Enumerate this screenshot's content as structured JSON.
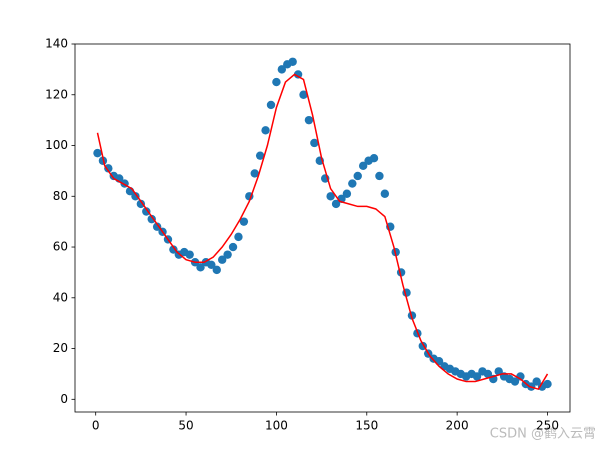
{
  "chart_data": {
    "type": "scatter",
    "xlim": [
      -11.45,
      262.45
    ],
    "ylim": [
      -5,
      140
    ],
    "xticks": [
      0,
      50,
      100,
      150,
      200,
      250
    ],
    "yticks": [
      0,
      20,
      40,
      60,
      80,
      100,
      120,
      140
    ],
    "annotation": "CSDN @鹤入云霄",
    "scatter": {
      "color": "#1f77b4",
      "x": [
        1,
        4,
        7,
        10,
        13,
        16,
        19,
        22,
        25,
        28,
        31,
        34,
        37,
        40,
        43,
        46,
        49,
        52,
        55,
        58,
        61,
        64,
        67,
        70,
        73,
        76,
        79,
        82,
        85,
        88,
        91,
        94,
        97,
        100,
        103,
        106,
        109,
        112,
        115,
        118,
        121,
        124,
        127,
        130,
        133,
        136,
        139,
        142,
        145,
        148,
        151,
        154,
        157,
        160,
        163,
        166,
        169,
        172,
        175,
        178,
        181,
        184,
        187,
        190,
        193,
        196,
        199,
        202,
        205,
        208,
        211,
        214,
        217,
        220,
        223,
        226,
        229,
        232,
        235,
        238,
        241,
        244,
        247,
        250
      ],
      "values": [
        97,
        94,
        91,
        88,
        87,
        85,
        82,
        80,
        77,
        74,
        71,
        68,
        66,
        63,
        59,
        57,
        58,
        57,
        54,
        52,
        54,
        53,
        51,
        55,
        57,
        60,
        64,
        70,
        80,
        89,
        96,
        106,
        116,
        125,
        130,
        132,
        133,
        128,
        120,
        110,
        101,
        94,
        87,
        80,
        77,
        79,
        81,
        85,
        88,
        92,
        94,
        95,
        88,
        81,
        68,
        58,
        50,
        42,
        33,
        26,
        21,
        18,
        16,
        15,
        13,
        12,
        11,
        10,
        9,
        10,
        9,
        11,
        10,
        8,
        11,
        9,
        8,
        7,
        9,
        6,
        5,
        7,
        5,
        6
      ]
    },
    "line": {
      "color": "#ff0000",
      "x": [
        1,
        5,
        10,
        15,
        20,
        25,
        30,
        35,
        40,
        45,
        50,
        55,
        60,
        65,
        70,
        75,
        80,
        85,
        90,
        95,
        100,
        105,
        110,
        115,
        120,
        125,
        130,
        135,
        140,
        145,
        150,
        155,
        160,
        165,
        170,
        175,
        180,
        185,
        190,
        195,
        200,
        205,
        210,
        215,
        220,
        225,
        230,
        235,
        240,
        245,
        250
      ],
      "values": [
        105,
        92,
        87,
        85,
        83,
        78,
        73,
        68,
        63,
        58,
        55,
        54,
        54,
        56,
        60,
        65,
        71,
        78,
        88,
        100,
        115,
        125,
        128,
        126,
        112,
        95,
        83,
        78,
        77,
        76,
        76,
        75,
        72,
        60,
        45,
        32,
        23,
        17,
        13,
        10,
        8,
        7,
        7,
        8,
        9,
        10,
        10,
        8,
        5,
        4,
        10
      ]
    }
  }
}
